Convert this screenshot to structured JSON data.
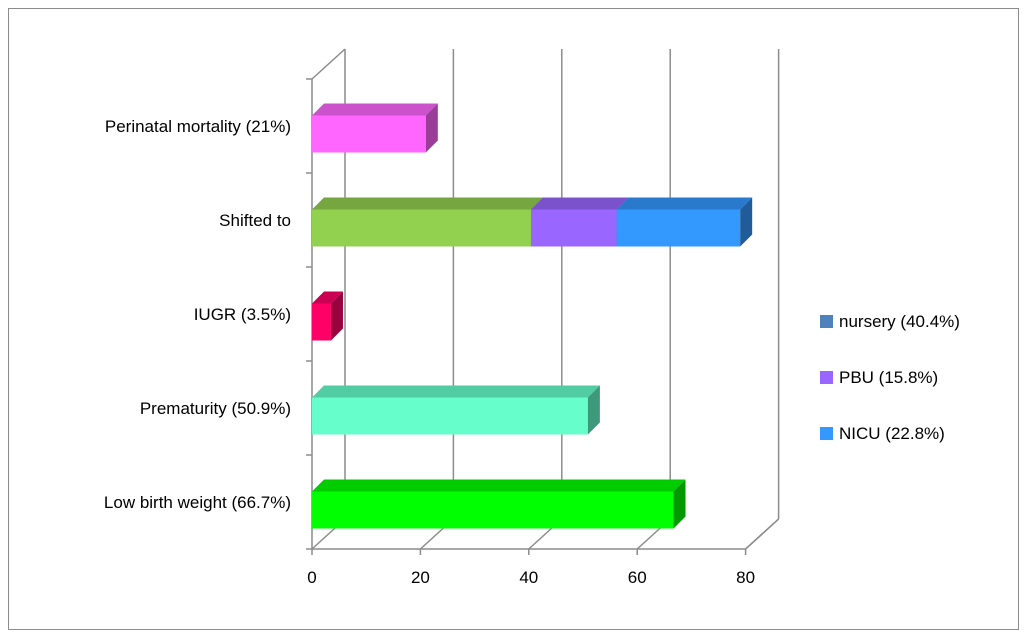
{
  "chart_data": {
    "type": "bar",
    "orientation": "horizontal",
    "style": "3d-stacked",
    "categories": [
      "Low birth weight (66.7%)",
      "Prematurity (50.9%)",
      "IUGR (3.5%)",
      "Shifted to",
      "Perinatal mortality (21%)"
    ],
    "category_colors": [
      "#00ff00",
      "#66ffcc",
      "#ff0066",
      "#92d050",
      "#ff66ff"
    ],
    "single_values": [
      66.7,
      50.9,
      3.5,
      null,
      21
    ],
    "stacked": {
      "category": "Shifted to",
      "series": [
        {
          "name": "nursery (40.4%)",
          "value": 40.4,
          "color": "#92d050"
        },
        {
          "name": "PBU (15.8%)",
          "value": 15.8,
          "color": "#9966ff"
        },
        {
          "name": "NICU (22.8%)",
          "value": 22.8,
          "color": "#3399ff"
        }
      ]
    },
    "legend": [
      {
        "name": "nursery (40.4%)",
        "color": "#4f81bd"
      },
      {
        "name": "PBU (15.8%)",
        "color": "#9966ff"
      },
      {
        "name": "NICU (22.8%)",
        "color": "#3399ff"
      }
    ],
    "legend_position": "right",
    "xlim": [
      0,
      80
    ],
    "x_ticks": [
      "0",
      "20",
      "40",
      "60",
      "80"
    ],
    "grid": true,
    "title": "",
    "xlabel": "",
    "ylabel": ""
  }
}
